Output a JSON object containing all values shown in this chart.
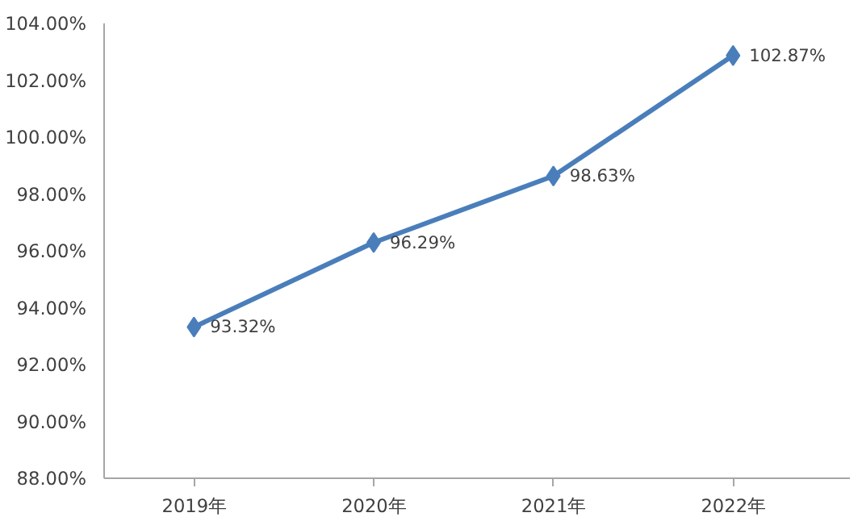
{
  "chart_data": {
    "type": "line",
    "categories": [
      "2019年",
      "2020年",
      "2021年",
      "2022年"
    ],
    "series": [
      {
        "color": "#4a7ebb",
        "values": [
          93.32,
          96.29,
          98.63,
          102.87
        ],
        "value_labels": [
          "93.32%",
          "96.29%",
          "98.63%",
          "102.87%"
        ]
      }
    ],
    "ylim": [
      88,
      104
    ],
    "yticks": [
      {
        "value": 88,
        "label": "88.00%"
      },
      {
        "value": 90,
        "label": "90.00%"
      },
      {
        "value": 92,
        "label": "92.00%"
      },
      {
        "value": 94,
        "label": "94.00%"
      },
      {
        "value": 96,
        "label": "96.00%"
      },
      {
        "value": 98,
        "label": "98.00%"
      },
      {
        "value": 100,
        "label": "100.00%"
      },
      {
        "value": 102,
        "label": "102.00%"
      },
      {
        "value": 104,
        "label": "104.00%"
      }
    ],
    "grid": false,
    "marker": "diamond",
    "line_style": "solid"
  }
}
